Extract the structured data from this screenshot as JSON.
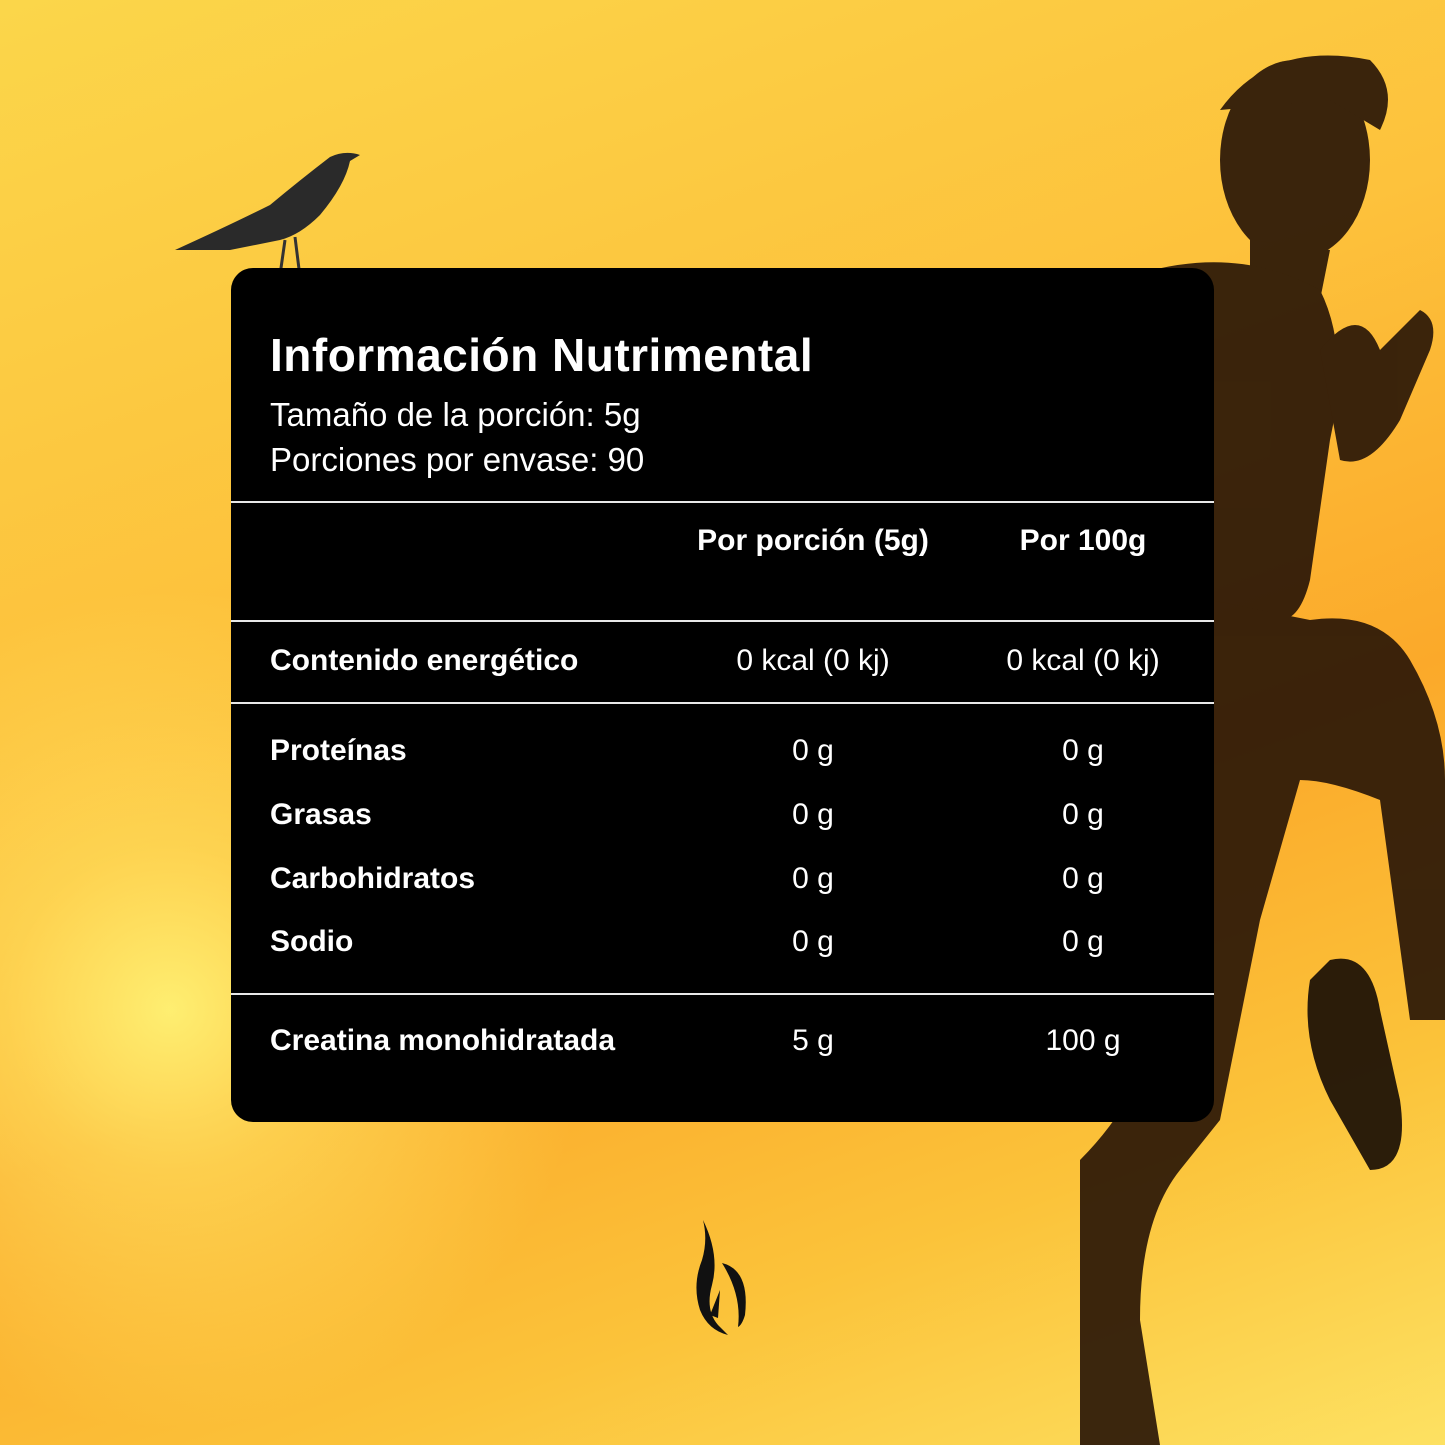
{
  "panel": {
    "title": "Información Nutrimental",
    "serving_size": "Tamaño de la porción: 5g",
    "servings_per_container": "Porciones por envase: 90",
    "columns": [
      "Por porción (5g)",
      "Por 100g"
    ],
    "energy": {
      "label": "Contenido energético",
      "per_serving": "0 kcal (0 kj)",
      "per_100g": "0 kcal (0 kj)"
    },
    "nutrients": [
      {
        "label": "Proteínas",
        "per_serving": "0 g",
        "per_100g": "0 g"
      },
      {
        "label": "Grasas",
        "per_serving": "0 g",
        "per_100g": "0 g"
      },
      {
        "label": "Carbohidratos",
        "per_serving": "0 g",
        "per_100g": "0 g"
      },
      {
        "label": "Sodio",
        "per_serving": "0 g",
        "per_100g": "0 g"
      }
    ],
    "active": {
      "label": "Creatina monohidratada",
      "per_serving": "5 g",
      "per_100g": "100 g"
    }
  },
  "icons": {
    "bird": "raven-illustration",
    "logo": "flame-logo"
  },
  "colors": {
    "background": "#fbc33a",
    "panel": "#000000",
    "text": "#ffffff"
  }
}
